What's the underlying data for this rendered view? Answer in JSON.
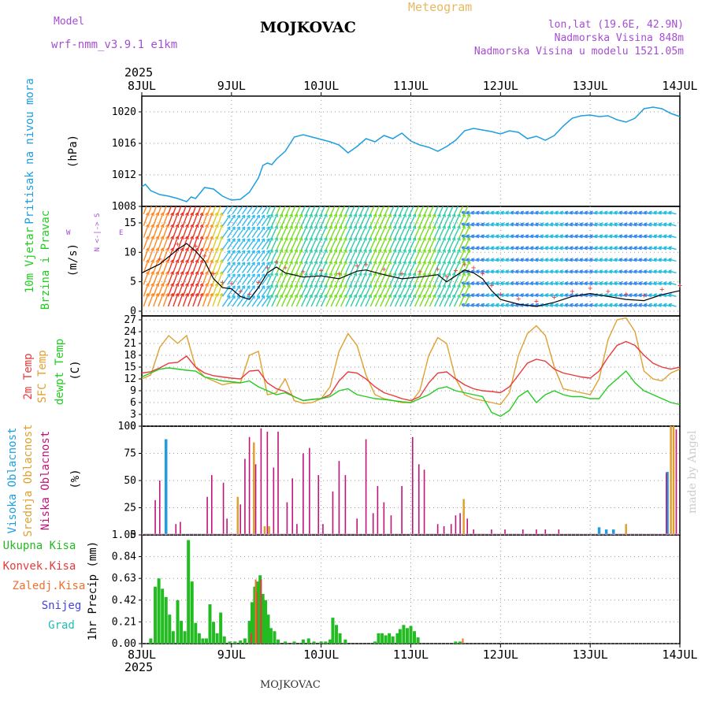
{
  "header": {
    "model_label": "Model",
    "model_name": "wrf-nmm_v3.9.1 e1km",
    "title": "MOJKOVAC",
    "meteogram": "Meteogram",
    "lonlat": "lon,lat (19.6E, 42.9N)",
    "elevation": "Nadmorska Visina 848m",
    "model_elevation": "Nadmorska Visina u modelu 1521.05m",
    "footer_title": "MOJKOVAC",
    "signature": "made by Angel"
  },
  "time_axis": {
    "year": "2025",
    "labels": [
      "8JUL",
      "9JUL",
      "10JUL",
      "11JUL",
      "12JUL",
      "13JUL",
      "14JUL"
    ]
  },
  "colors": {
    "pressure": "#1e9ee0",
    "temp2m": "#e83a3a",
    "sfc_temp": "#e0a030",
    "dewpoint": "#22cc22",
    "high_cloud": "#1e9ee0",
    "mid_cloud": "#e0a030",
    "low_cloud": "#c0147a",
    "total_precip": "#22bb22",
    "conv_precip": "#e83a3a",
    "frz_precip": "#f07030",
    "snow": "#4444dd",
    "graupel": "#22bbbb"
  },
  "chart_data": [
    {
      "type": "line",
      "name": "pressure",
      "ylabel": "Pritisak na nivou mora",
      "unit": "(hPa)",
      "ylim": [
        1008,
        1022
      ],
      "yticks": [
        1008,
        1012,
        1016,
        1020
      ],
      "x": [
        0,
        0.04,
        0.1,
        0.2,
        0.3,
        0.4,
        0.5,
        0.55,
        0.6,
        0.7,
        0.8,
        0.9,
        1.0,
        1.1,
        1.2,
        1.3,
        1.35,
        1.4,
        1.45,
        1.5,
        1.6,
        1.7,
        1.8,
        1.9,
        2.0,
        2.1,
        2.2,
        2.3,
        2.4,
        2.5,
        2.6,
        2.7,
        2.8,
        2.9,
        3.0,
        3.1,
        3.2,
        3.3,
        3.4,
        3.5,
        3.6,
        3.7,
        3.8,
        3.9,
        4.0,
        4.1,
        4.2,
        4.3,
        4.4,
        4.5,
        4.6,
        4.7,
        4.8,
        4.9,
        5.0,
        5.1,
        5.2,
        5.3,
        5.4,
        5.5,
        5.6,
        5.7,
        5.8,
        5.9,
        6.0
      ],
      "values": [
        1010.5,
        1010.8,
        1010.0,
        1009.5,
        1009.3,
        1009.0,
        1008.6,
        1009.2,
        1009.0,
        1010.4,
        1010.2,
        1009.3,
        1008.8,
        1008.9,
        1009.8,
        1011.6,
        1013.2,
        1013.5,
        1013.3,
        1014.0,
        1015.0,
        1016.8,
        1017.1,
        1016.8,
        1016.5,
        1016.2,
        1015.8,
        1014.8,
        1015.6,
        1016.6,
        1016.2,
        1017.0,
        1016.6,
        1017.3,
        1016.3,
        1015.8,
        1015.5,
        1015.0,
        1015.6,
        1016.4,
        1017.6,
        1017.9,
        1017.7,
        1017.5,
        1017.2,
        1017.6,
        1017.4,
        1016.6,
        1016.9,
        1016.4,
        1017.0,
        1018.2,
        1019.2,
        1019.5,
        1019.6,
        1019.4,
        1019.5,
        1019.0,
        1018.7,
        1019.2,
        1020.4,
        1020.6,
        1020.4,
        1019.8,
        1019.4
      ]
    },
    {
      "type": "line",
      "name": "wind",
      "ylabel": "10m Vjetar Brzina i Pravac",
      "unit": "(m/s)",
      "ylim": [
        -0.8,
        17.8
      ],
      "yticks": [
        0,
        5,
        10,
        15
      ],
      "compass": {
        "n": "N",
        "s": "S",
        "e": "E",
        "w": "W",
        "arrow": "<-|->"
      },
      "x": [
        0,
        0.2,
        0.4,
        0.5,
        0.6,
        0.7,
        0.8,
        0.9,
        1.0,
        1.1,
        1.2,
        1.3,
        1.4,
        1.5,
        1.6,
        1.8,
        2.0,
        2.2,
        2.4,
        2.5,
        2.7,
        2.9,
        3.1,
        3.3,
        3.4,
        3.5,
        3.6,
        3.7,
        3.8,
        3.9,
        4.0,
        4.2,
        4.4,
        4.6,
        4.8,
        5.0,
        5.2,
        5.4,
        5.6,
        5.8,
        6.0
      ],
      "values": [
        6.5,
        8.0,
        10.5,
        11.5,
        10.2,
        8.5,
        5.5,
        4.0,
        3.8,
        2.5,
        2.0,
        4.0,
        6.5,
        7.5,
        6.5,
        5.8,
        6.0,
        5.5,
        6.8,
        7.0,
        6.2,
        5.5,
        5.8,
        6.2,
        5.0,
        6.0,
        7.0,
        6.5,
        5.5,
        3.5,
        2.0,
        1.2,
        0.8,
        1.5,
        2.5,
        3.0,
        2.5,
        2.0,
        1.8,
        2.8,
        3.5
      ]
    },
    {
      "type": "line",
      "name": "temperature",
      "ylabel": "2m Temp / SFC Temp / dewpt Temp",
      "unit": "(C)",
      "ylim": [
        0,
        28
      ],
      "yticks": [
        0,
        3,
        6,
        9,
        12,
        15,
        18,
        21,
        24,
        27
      ],
      "x": [
        0,
        0.1,
        0.2,
        0.3,
        0.4,
        0.5,
        0.6,
        0.7,
        0.8,
        0.9,
        1.0,
        1.1,
        1.2,
        1.3,
        1.4,
        1.5,
        1.6,
        1.7,
        1.8,
        1.9,
        2.0,
        2.1,
        2.2,
        2.3,
        2.4,
        2.5,
        2.6,
        2.7,
        2.8,
        2.9,
        3.0,
        3.1,
        3.2,
        3.3,
        3.4,
        3.5,
        3.6,
        3.7,
        3.8,
        3.9,
        4.0,
        4.1,
        4.2,
        4.3,
        4.4,
        4.5,
        4.6,
        4.7,
        4.8,
        4.9,
        5.0,
        5.1,
        5.2,
        5.3,
        5.4,
        5.5,
        5.6,
        5.7,
        5.8,
        5.9,
        6.0
      ],
      "series": [
        {
          "name": "2m Temp",
          "values": [
            13.5,
            13.8,
            14.8,
            16.0,
            16.2,
            17.8,
            15.0,
            13.5,
            12.8,
            12.5,
            12.2,
            12.0,
            14.0,
            14.2,
            11.0,
            9.5,
            8.8,
            7.5,
            6.5,
            6.8,
            7.0,
            8.0,
            11.5,
            13.8,
            13.5,
            12.0,
            10.0,
            8.5,
            7.8,
            7.0,
            6.5,
            7.5,
            11.0,
            13.5,
            13.8,
            12.0,
            10.5,
            9.5,
            9.0,
            8.8,
            8.5,
            10.0,
            13.0,
            16.0,
            17.0,
            16.5,
            14.5,
            13.5,
            13.0,
            12.5,
            12.2,
            14.0,
            17.5,
            20.5,
            21.5,
            20.5,
            18.0,
            16.0,
            15.0,
            14.5,
            15.0
          ]
        },
        {
          "name": "SFC Temp",
          "values": [
            12.0,
            13.0,
            20.0,
            23.0,
            21.0,
            23.0,
            15.0,
            12.5,
            11.5,
            10.5,
            11.0,
            11.0,
            18.0,
            19.0,
            8.0,
            8.5,
            12.0,
            6.5,
            5.8,
            6.0,
            7.0,
            10.0,
            19.0,
            23.5,
            20.5,
            13.0,
            8.0,
            7.0,
            6.5,
            6.0,
            6.0,
            9.0,
            18.0,
            22.5,
            21.0,
            12.0,
            8.0,
            7.0,
            6.5,
            6.0,
            5.5,
            8.5,
            18.0,
            23.5,
            25.5,
            23.0,
            15.0,
            9.5,
            9.0,
            8.5,
            8.0,
            12.0,
            22.0,
            27.0,
            27.5,
            24.0,
            14.0,
            12.0,
            11.5,
            13.5,
            14.5
          ]
        },
        {
          "name": "dewpt Temp",
          "values": [
            12.5,
            13.5,
            14.5,
            14.8,
            14.5,
            14.2,
            14.0,
            12.5,
            12.0,
            11.5,
            11.3,
            11.0,
            11.5,
            10.0,
            9.0,
            8.0,
            8.5,
            7.5,
            6.5,
            6.8,
            7.0,
            7.5,
            9.0,
            9.5,
            8.0,
            7.5,
            7.0,
            6.8,
            6.5,
            6.2,
            6.0,
            7.0,
            8.0,
            9.5,
            10.0,
            9.0,
            8.5,
            8.0,
            7.5,
            3.5,
            2.5,
            4.0,
            7.5,
            9.0,
            6.0,
            8.0,
            9.0,
            8.0,
            7.5,
            7.5,
            7.0,
            7.0,
            10.0,
            12.0,
            14.0,
            11.0,
            9.0,
            8.0,
            7.0,
            6.0,
            5.5
          ]
        }
      ]
    },
    {
      "type": "bar",
      "name": "cloud",
      "ylabel": "Visoka Oblacnost / Srednja Oblacnost / Niska Oblacnost",
      "unit": "(%)",
      "ylim": [
        0,
        100
      ],
      "yticks": [
        0,
        25,
        50,
        75,
        100
      ],
      "series": [
        {
          "name": "Visoka Oblacnost",
          "points": [
            [
              0.27,
              88
            ],
            [
              5.86,
              58
            ],
            [
              5.1,
              7
            ],
            [
              5.18,
              5
            ],
            [
              5.26,
              5
            ]
          ]
        },
        {
          "name": "Srednja Oblacnost",
          "points": [
            [
              1.07,
              35
            ],
            [
              1.25,
              85
            ],
            [
              1.37,
              8
            ],
            [
              1.42,
              8
            ],
            [
              3.59,
              33
            ],
            [
              5.4,
              10
            ],
            [
              5.9,
              100
            ],
            [
              5.93,
              100
            ]
          ]
        },
        {
          "name": "Niska Oblacnost",
          "points": [
            [
              0.15,
              32
            ],
            [
              0.2,
              50
            ],
            [
              0.38,
              10
            ],
            [
              0.43,
              12
            ],
            [
              0.73,
              35
            ],
            [
              0.78,
              55
            ],
            [
              0.91,
              48
            ],
            [
              0.95,
              15
            ],
            [
              1.1,
              28
            ],
            [
              1.15,
              70
            ],
            [
              1.2,
              90
            ],
            [
              1.27,
              65
            ],
            [
              1.33,
              98
            ],
            [
              1.4,
              95
            ],
            [
              1.47,
              62
            ],
            [
              1.52,
              95
            ],
            [
              1.62,
              30
            ],
            [
              1.68,
              52
            ],
            [
              1.73,
              10
            ],
            [
              1.8,
              75
            ],
            [
              1.87,
              80
            ],
            [
              1.97,
              55
            ],
            [
              2.02,
              10
            ],
            [
              2.13,
              40
            ],
            [
              2.2,
              68
            ],
            [
              2.27,
              55
            ],
            [
              2.4,
              15
            ],
            [
              2.5,
              88
            ],
            [
              2.58,
              20
            ],
            [
              2.63,
              45
            ],
            [
              2.7,
              30
            ],
            [
              2.78,
              18
            ],
            [
              2.9,
              45
            ],
            [
              3.02,
              90
            ],
            [
              3.09,
              65
            ],
            [
              3.15,
              60
            ],
            [
              3.3,
              10
            ],
            [
              3.37,
              8
            ],
            [
              3.45,
              10
            ],
            [
              3.5,
              18
            ],
            [
              3.55,
              20
            ],
            [
              3.63,
              15
            ],
            [
              3.7,
              5
            ],
            [
              3.9,
              5
            ],
            [
              4.05,
              5
            ],
            [
              4.25,
              5
            ],
            [
              4.4,
              5
            ],
            [
              4.5,
              5
            ],
            [
              4.65,
              5
            ],
            [
              5.85,
              57
            ],
            [
              5.96,
              97
            ]
          ]
        }
      ]
    },
    {
      "type": "bar",
      "name": "precip",
      "ylabel": "1hr Precip",
      "unit": "(mm)",
      "ylim": [
        0,
        1.05
      ],
      "yticks": [
        0,
        0.21,
        0.42,
        0.63,
        0.84,
        1.05
      ],
      "series": [
        {
          "name": "Ukupna Kisa",
          "points": [
            [
              0.1,
              0.05
            ],
            [
              0.15,
              0.55
            ],
            [
              0.19,
              0.63
            ],
            [
              0.23,
              0.53
            ],
            [
              0.27,
              0.45
            ],
            [
              0.31,
              0.28
            ],
            [
              0.35,
              0.12
            ],
            [
              0.4,
              0.42
            ],
            [
              0.44,
              0.22
            ],
            [
              0.48,
              0.12
            ],
            [
              0.52,
              1.0
            ],
            [
              0.56,
              0.6
            ],
            [
              0.6,
              0.2
            ],
            [
              0.64,
              0.1
            ],
            [
              0.68,
              0.05
            ],
            [
              0.72,
              0.05
            ],
            [
              0.76,
              0.38
            ],
            [
              0.8,
              0.21
            ],
            [
              0.84,
              0.1
            ],
            [
              0.88,
              0.3
            ],
            [
              0.92,
              0.07
            ],
            [
              0.98,
              0.02
            ],
            [
              1.04,
              0.02
            ],
            [
              1.1,
              0.03
            ],
            [
              1.15,
              0.05
            ],
            [
              1.2,
              0.22
            ],
            [
              1.23,
              0.4
            ],
            [
              1.26,
              0.55
            ],
            [
              1.29,
              0.6
            ],
            [
              1.32,
              0.66
            ],
            [
              1.35,
              0.48
            ],
            [
              1.38,
              0.42
            ],
            [
              1.41,
              0.28
            ],
            [
              1.44,
              0.15
            ],
            [
              1.48,
              0.12
            ],
            [
              1.52,
              0.04
            ],
            [
              1.6,
              0.02
            ],
            [
              1.7,
              0.02
            ],
            [
              1.8,
              0.04
            ],
            [
              1.86,
              0.05
            ],
            [
              1.92,
              0.02
            ],
            [
              2.0,
              0.02
            ],
            [
              2.05,
              0.02
            ],
            [
              2.1,
              0.04
            ],
            [
              2.13,
              0.25
            ],
            [
              2.17,
              0.18
            ],
            [
              2.21,
              0.1
            ],
            [
              2.27,
              0.04
            ],
            [
              2.6,
              0.02
            ],
            [
              2.64,
              0.1
            ],
            [
              2.68,
              0.1
            ],
            [
              2.72,
              0.08
            ],
            [
              2.76,
              0.1
            ],
            [
              2.8,
              0.07
            ],
            [
              2.85,
              0.1
            ],
            [
              2.88,
              0.14
            ],
            [
              2.92,
              0.18
            ],
            [
              2.96,
              0.15
            ],
            [
              3.0,
              0.17
            ],
            [
              3.04,
              0.12
            ],
            [
              3.08,
              0.06
            ],
            [
              3.5,
              0.02
            ],
            [
              3.55,
              0.02
            ]
          ]
        },
        {
          "name": "Konvek.Kisa",
          "points": [
            [
              1.22,
              0.1
            ],
            [
              1.28,
              0.5
            ],
            [
              1.33,
              0.62
            ]
          ]
        },
        {
          "name": "Zaledj.Kisa",
          "points": [
            [
              1.27,
              0.62
            ],
            [
              3.58,
              0.05
            ]
          ]
        },
        {
          "name": "Snijeg",
          "points": []
        },
        {
          "name": "Grad",
          "points": []
        }
      ]
    }
  ]
}
